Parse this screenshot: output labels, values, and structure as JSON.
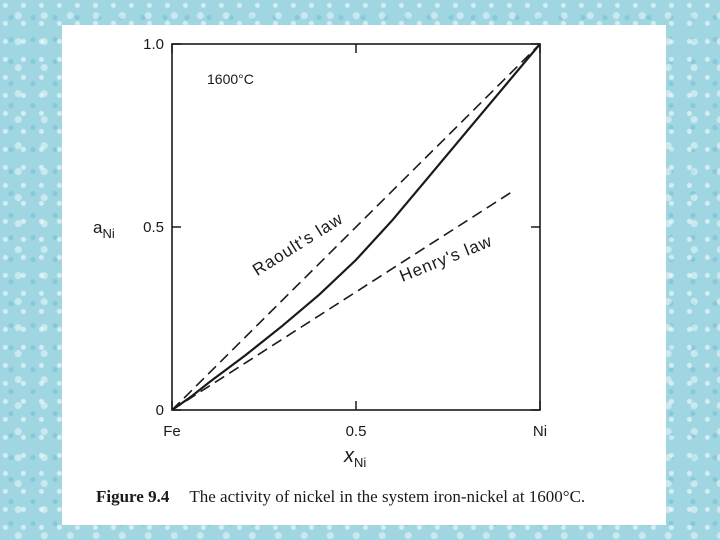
{
  "chart_data": {
    "type": "line",
    "title": "",
    "annotation_temp": "1600°C",
    "xlabel_main": "x",
    "xlabel_sub": "Ni",
    "ylabel_main": "a",
    "ylabel_sub": "Ni",
    "xlim": [
      0,
      1
    ],
    "ylim": [
      0,
      1
    ],
    "x_tick_labels": [
      {
        "x": 0,
        "label": "Fe"
      },
      {
        "x": 0.5,
        "label": "0.5"
      },
      {
        "x": 1,
        "label": "Ni"
      }
    ],
    "y_tick_labels": [
      {
        "y": 0,
        "label": "0"
      },
      {
        "y": 0.5,
        "label": "0.5"
      },
      {
        "y": 1,
        "label": "1.0"
      }
    ],
    "series": [
      {
        "name": "",
        "style": "solid",
        "x": [
          0,
          0.05,
          0.1,
          0.2,
          0.3,
          0.4,
          0.5,
          0.6,
          0.7,
          0.8,
          0.9,
          1.0
        ],
        "y": [
          0,
          0.035,
          0.075,
          0.15,
          0.23,
          0.315,
          0.41,
          0.52,
          0.64,
          0.76,
          0.88,
          1.0
        ]
      },
      {
        "name": "Raoult's law",
        "style": "dashed",
        "x": [
          0,
          1
        ],
        "y": [
          0,
          1
        ]
      },
      {
        "name": "Henry's law",
        "style": "dashed",
        "x": [
          0,
          0.93
        ],
        "y": [
          0,
          0.6
        ]
      }
    ],
    "annotations": [
      {
        "text": "Raoult's law",
        "x": 0.35,
        "y": 0.44
      },
      {
        "text": "Henry's law",
        "x": 0.75,
        "y": 0.4
      }
    ]
  },
  "caption": {
    "figure_label": "Figure 9.4",
    "text": "The activity of nickel in the system iron-nickel at 1600°C."
  }
}
